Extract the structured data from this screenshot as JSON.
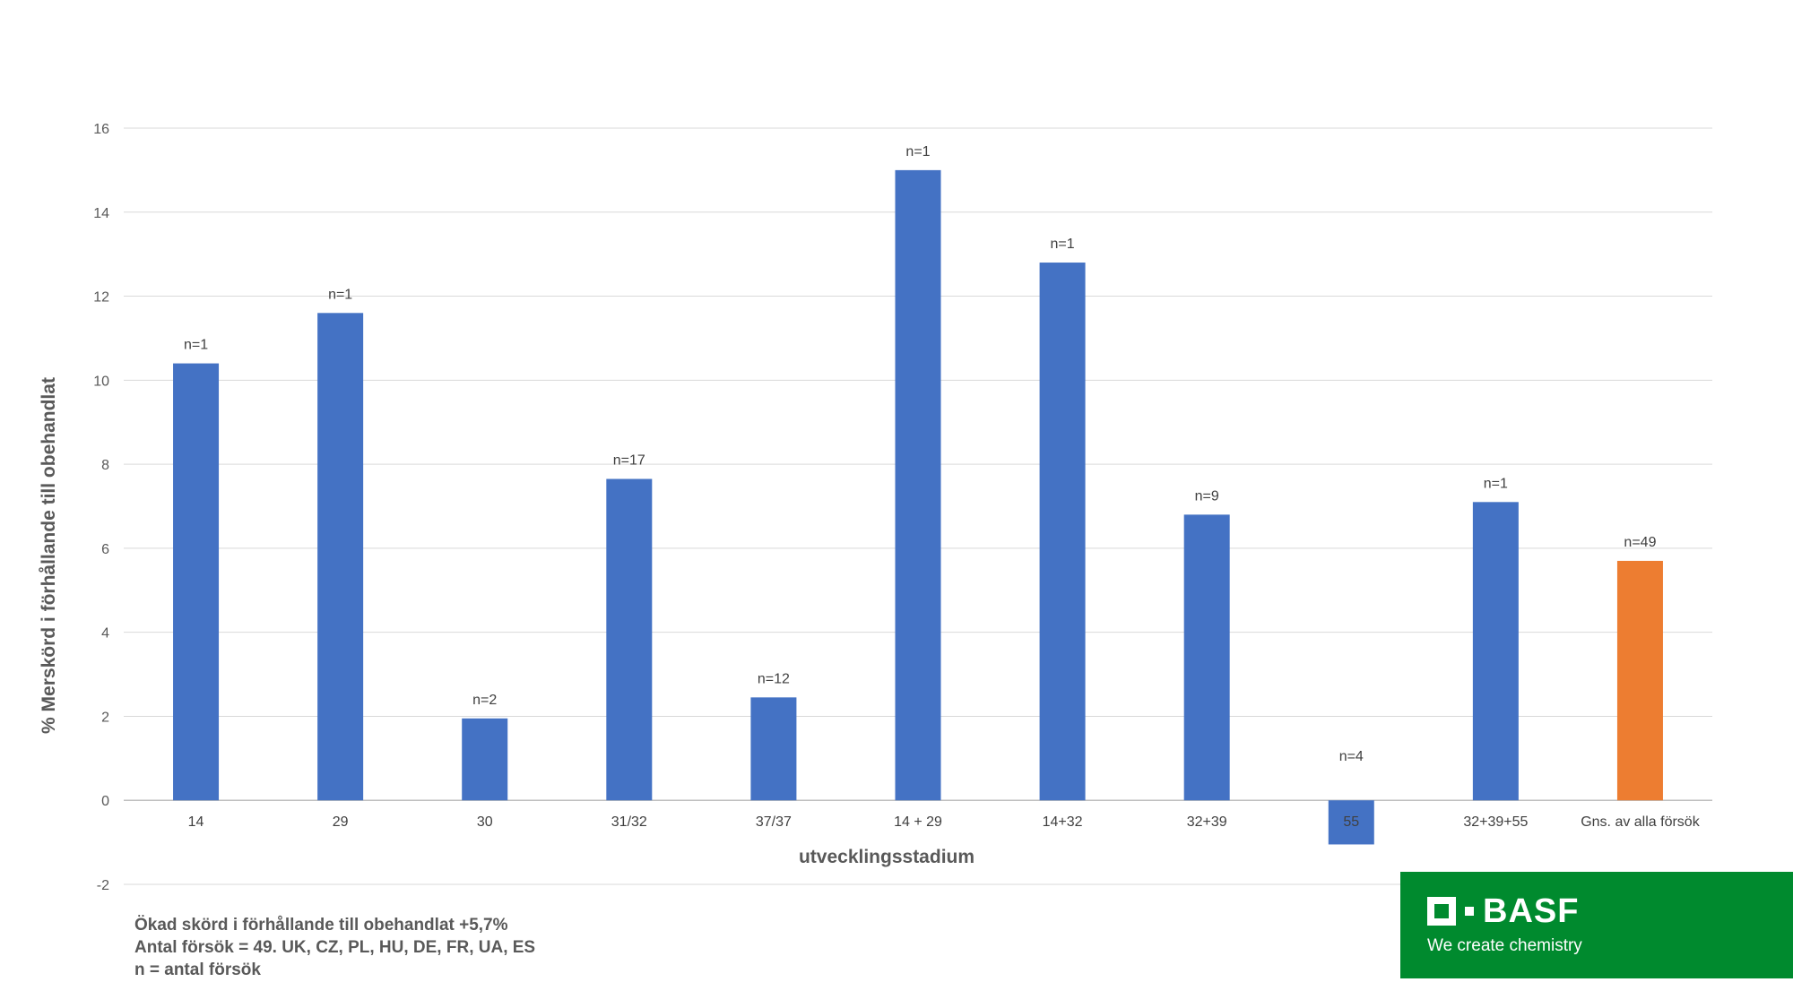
{
  "chart_data": {
    "type": "bar",
    "categories": [
      "14",
      "29",
      "30",
      "31/32",
      "37/37",
      "14 + 29",
      "14+32",
      "32+39",
      "55",
      "32+39+55",
      "Gns. av alla försök"
    ],
    "values": [
      10.4,
      11.6,
      1.95,
      7.65,
      2.45,
      15.0,
      12.8,
      6.8,
      -1.05,
      7.1,
      5.7
    ],
    "data_labels": [
      "n=1",
      "n=1",
      "n=2",
      "n=17",
      "n=12",
      "n=1",
      "n=1",
      "n=9",
      "n=4",
      "n=1",
      "n=49"
    ],
    "colors": [
      "#4472c4",
      "#4472c4",
      "#4472c4",
      "#4472c4",
      "#4472c4",
      "#4472c4",
      "#4472c4",
      "#4472c4",
      "#4472c4",
      "#4472c4",
      "#ed7d31"
    ],
    "xlabel": "utvecklingsstadium",
    "ylabel": "% Merskörd i förhållande till obehandlat",
    "ylim": [
      -2,
      16
    ],
    "yticks": [
      -2,
      0,
      2,
      4,
      6,
      8,
      10,
      12,
      14,
      16
    ],
    "grid": true
  },
  "footnotes": [
    "Ökad skörd i förhållande till obehandlat +5,7%",
    "Antal försök = 49. UK, CZ, PL, HU, DE, FR, UA, ES",
    "n = antal försök"
  ],
  "logo": {
    "name": "BASF",
    "tagline": "We create chemistry",
    "background": "#008a2e"
  }
}
